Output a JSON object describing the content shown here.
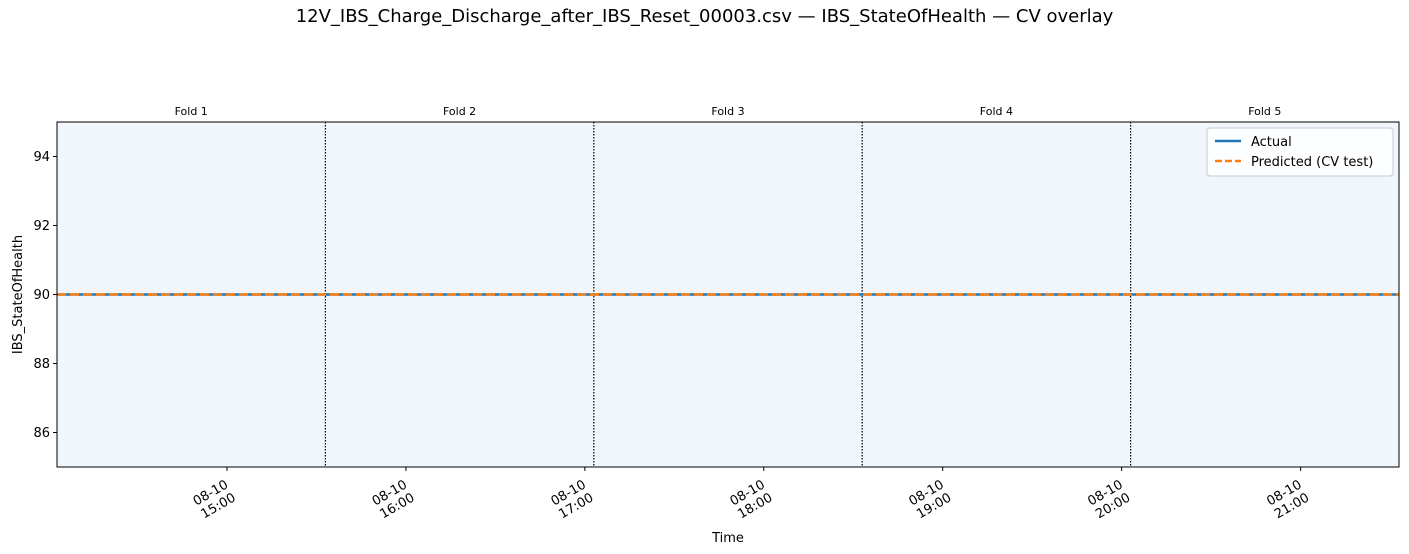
{
  "chart_data": {
    "type": "line",
    "title": "12V_IBS_Charge_Discharge_after_IBS_Reset_00003.csv — IBS_StateOfHealth — CV overlay",
    "xlabel": "Time",
    "ylabel": "IBS_StateOfHealth",
    "ylim": [
      85,
      95
    ],
    "xlim": [
      "08-10 14:03",
      "08-10 21:33"
    ],
    "y_ticks": [
      86,
      88,
      90,
      92,
      94
    ],
    "x_ticks": [
      {
        "value": "08-10 15:00",
        "label_line1": "08-10",
        "label_line2": "15:00"
      },
      {
        "value": "08-10 16:00",
        "label_line1": "08-10",
        "label_line2": "16:00"
      },
      {
        "value": "08-10 17:00",
        "label_line1": "08-10",
        "label_line2": "17:00"
      },
      {
        "value": "08-10 18:00",
        "label_line1": "08-10",
        "label_line2": "18:00"
      },
      {
        "value": "08-10 19:00",
        "label_line1": "08-10",
        "label_line2": "19:00"
      },
      {
        "value": "08-10 20:00",
        "label_line1": "08-10",
        "label_line2": "20:00"
      },
      {
        "value": "08-10 21:00",
        "label_line1": "08-10",
        "label_line2": "21:00"
      }
    ],
    "fold_boundaries": [
      "08-10 15:33",
      "08-10 17:03",
      "08-10 18:33",
      "08-10 20:03"
    ],
    "folds": [
      "Fold 1",
      "Fold 2",
      "Fold 3",
      "Fold 4",
      "Fold 5"
    ],
    "series": [
      {
        "name": "Actual",
        "color": "#1f77b4",
        "style": "solid",
        "x": [
          "08-10 14:03",
          "08-10 21:33"
        ],
        "y": [
          90,
          90
        ]
      },
      {
        "name": "Predicted (CV test)",
        "color": "#ff7f0e",
        "style": "dashed",
        "x": [
          "08-10 14:03",
          "08-10 21:33"
        ],
        "y": [
          90,
          90
        ]
      }
    ],
    "grid": false,
    "legend_position": "top-right",
    "background_color": "#f0f6fb"
  }
}
